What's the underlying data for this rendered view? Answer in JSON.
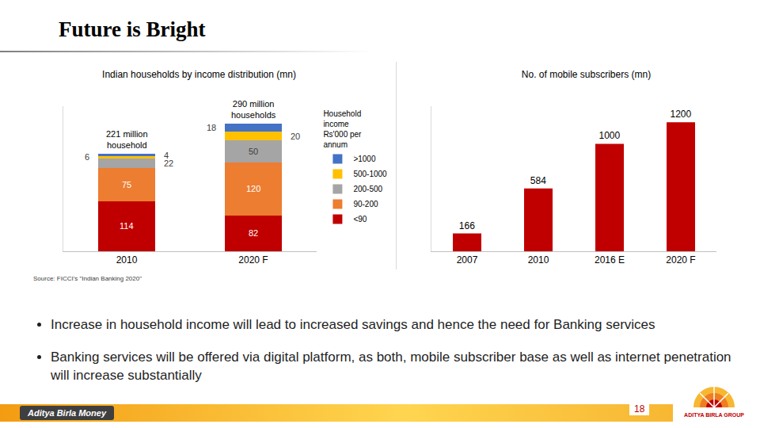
{
  "slide": {
    "title": "Future is Bright",
    "source": "Source: FICCI's \"Indian Banking 2020\"",
    "bullets": [
      "Increase in household income will lead to increased savings and hence the need for Banking services",
      "Banking services will be offered via digital platform, as both, mobile subscriber base as well as internet penetration will increase substantially"
    ],
    "footer": "Aditya Birla Money",
    "page": 18,
    "logo": "ADITYA BIRLA GROUP"
  },
  "chart_data": [
    {
      "type": "bar",
      "stacked": true,
      "title": "Indian households by income distribution (mn)",
      "categories": [
        "2010",
        "2020 F"
      ],
      "series": [
        {
          "name": "<90",
          "color": "#c00000",
          "values": [
            114,
            82
          ]
        },
        {
          "name": "90-200",
          "color": "#ed7d31",
          "values": [
            75,
            120
          ]
        },
        {
          "name": "200-500",
          "color": "#a5a5a5",
          "values": [
            22,
            50
          ]
        },
        {
          "name": "500-1000",
          "color": "#ffc000",
          "values": [
            6,
            20
          ]
        },
        {
          "name": ">1000",
          "color": "#4472c4",
          "values": [
            4,
            18
          ]
        }
      ],
      "legend_title": "Household income Rs'000 per annum",
      "legend": "right",
      "annotations": [
        {
          "category": "2010",
          "text": "221 million household"
        },
        {
          "category": "2020 F",
          "text": "290 million households"
        }
      ],
      "ylim": [
        0,
        330
      ],
      "yticks": [],
      "tick_labels": "x",
      "data_labels": true,
      "grid": false
    },
    {
      "type": "bar",
      "title": "No. of mobile subscribers (mn)",
      "categories": [
        "2007",
        "2010",
        "2016 E",
        "2020 F"
      ],
      "values": [
        166,
        584,
        1000,
        1200
      ],
      "color": "#c00000",
      "ylim": [
        0,
        1350
      ],
      "yticks": [],
      "tick_labels": "x",
      "data_labels": true,
      "grid": false
    }
  ]
}
